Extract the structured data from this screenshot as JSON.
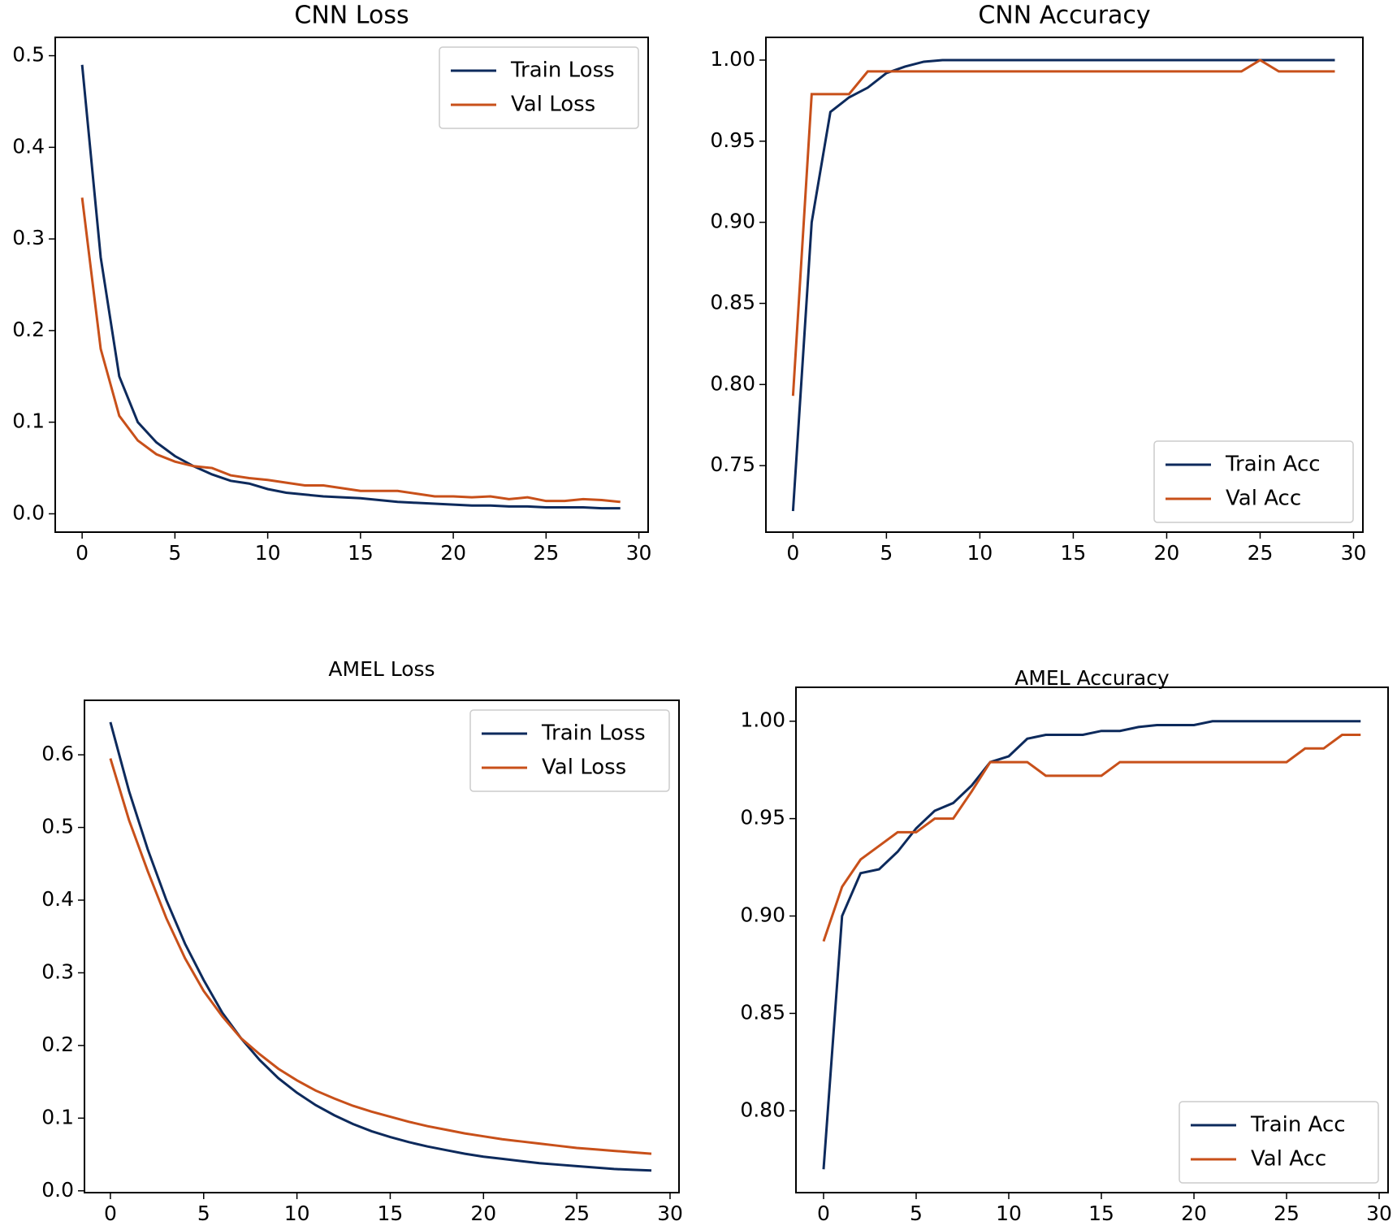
{
  "chart_data": [
    {
      "type": "line",
      "title": "CNN Loss",
      "legend": "upper right",
      "x": [
        0,
        1,
        2,
        3,
        4,
        5,
        6,
        7,
        8,
        9,
        10,
        11,
        12,
        13,
        14,
        15,
        16,
        17,
        18,
        19,
        20,
        21,
        22,
        23,
        24,
        25,
        26,
        27,
        28,
        29
      ],
      "xlim": [
        -1.45,
        30.5
      ],
      "xticks": [
        0,
        5,
        10,
        15,
        20,
        25,
        30
      ],
      "ylim": [
        -0.02,
        0.52
      ],
      "yticks": [
        {
          "value": 0,
          "label": "0.0"
        },
        0.1,
        0.2,
        0.3,
        0.4,
        0.5
      ],
      "series": [
        {
          "name": "Train Loss",
          "color": "#0d2a5c",
          "values": [
            0.49,
            0.28,
            0.15,
            0.1,
            0.078,
            0.063,
            0.052,
            0.043,
            0.036,
            0.033,
            0.027,
            0.023,
            0.021,
            0.019,
            0.018,
            0.017,
            0.015,
            0.013,
            0.012,
            0.011,
            0.01,
            0.009,
            0.009,
            0.008,
            0.008,
            0.007,
            0.007,
            0.007,
            0.006,
            0.006
          ]
        },
        {
          "name": "Val Loss",
          "color": "#c8501a",
          "values": [
            0.345,
            0.18,
            0.107,
            0.08,
            0.065,
            0.057,
            0.052,
            0.05,
            0.042,
            0.039,
            0.037,
            0.034,
            0.031,
            0.031,
            0.028,
            0.025,
            0.025,
            0.025,
            0.022,
            0.019,
            0.019,
            0.018,
            0.019,
            0.016,
            0.018,
            0.014,
            0.014,
            0.016,
            0.015,
            0.013
          ]
        }
      ]
    },
    {
      "type": "line",
      "title": "CNN Accuracy",
      "legend": "lower right",
      "x": [
        0,
        1,
        2,
        3,
        4,
        5,
        6,
        7,
        8,
        9,
        10,
        11,
        12,
        13,
        14,
        15,
        16,
        17,
        18,
        19,
        20,
        21,
        22,
        23,
        24,
        25,
        26,
        27,
        28,
        29
      ],
      "xlim": [
        -1.45,
        30.5
      ],
      "xticks": [
        0,
        5,
        10,
        15,
        20,
        25,
        30
      ],
      "ylim": [
        0.709,
        1.014
      ],
      "yticks": [
        0.75,
        {
          "value": 0.8,
          "label": "0.80"
        },
        0.85,
        {
          "value": 0.9,
          "label": "0.90"
        },
        0.95,
        {
          "value": 1,
          "label": "1.00"
        }
      ],
      "series": [
        {
          "name": "Train Acc",
          "color": "#0d2a5c",
          "values": [
            0.722,
            0.9,
            0.968,
            0.977,
            0.983,
            0.992,
            0.996,
            0.999,
            1,
            1,
            1,
            1,
            1,
            1,
            1,
            1,
            1,
            1,
            1,
            1,
            1,
            1,
            1,
            1,
            1,
            1,
            1,
            1,
            1,
            1
          ]
        },
        {
          "name": "Val Acc",
          "color": "#c8501a",
          "values": [
            0.793,
            0.979,
            0.979,
            0.979,
            0.993,
            0.993,
            0.993,
            0.993,
            0.993,
            0.993,
            0.993,
            0.993,
            0.993,
            0.993,
            0.993,
            0.993,
            0.993,
            0.993,
            0.993,
            0.993,
            0.993,
            0.993,
            0.993,
            0.993,
            0.993,
            1,
            0.993,
            0.993,
            0.993,
            0.993
          ]
        }
      ]
    },
    {
      "type": "line",
      "title": "AMEL Loss",
      "legend": "upper right",
      "x": [
        0,
        1,
        2,
        3,
        4,
        5,
        6,
        7,
        8,
        9,
        10,
        11,
        12,
        13,
        14,
        15,
        16,
        17,
        18,
        19,
        20,
        21,
        22,
        23,
        24,
        25,
        26,
        27,
        28,
        29
      ],
      "xlim": [
        -1.39,
        30.48
      ],
      "xticks": [
        0,
        5,
        10,
        15,
        20,
        25,
        30
      ],
      "ylim": [
        -0.0025,
        0.675
      ],
      "yticks": [
        {
          "value": 0,
          "label": "0.0"
        },
        0.1,
        0.2,
        0.3,
        0.4,
        0.5,
        0.6
      ],
      "series": [
        {
          "name": "Train Loss",
          "color": "#0d2a5c",
          "values": [
            0.645,
            0.55,
            0.47,
            0.4,
            0.34,
            0.29,
            0.245,
            0.21,
            0.18,
            0.155,
            0.135,
            0.118,
            0.104,
            0.092,
            0.082,
            0.074,
            0.067,
            0.061,
            0.056,
            0.051,
            0.047,
            0.044,
            0.041,
            0.038,
            0.036,
            0.034,
            0.032,
            0.03,
            0.029,
            0.028
          ]
        },
        {
          "name": "Val Loss",
          "color": "#c8501a",
          "values": [
            0.595,
            0.51,
            0.44,
            0.375,
            0.32,
            0.275,
            0.24,
            0.21,
            0.188,
            0.168,
            0.152,
            0.138,
            0.127,
            0.117,
            0.109,
            0.102,
            0.095,
            0.089,
            0.084,
            0.079,
            0.075,
            0.071,
            0.068,
            0.065,
            0.062,
            0.059,
            0.057,
            0.055,
            0.053,
            0.051
          ]
        }
      ]
    },
    {
      "type": "line",
      "title": "AMEL Accuracy",
      "legend": "lower right",
      "x": [
        0,
        1,
        2,
        3,
        4,
        5,
        6,
        7,
        8,
        9,
        10,
        11,
        12,
        13,
        14,
        15,
        16,
        17,
        18,
        19,
        20,
        21,
        22,
        23,
        24,
        25,
        26,
        27,
        28,
        29
      ],
      "xlim": [
        -1.49,
        30.48
      ],
      "xticks": [
        0,
        5,
        10,
        15,
        20,
        25,
        30
      ],
      "ylim": [
        0.758,
        1.0174
      ],
      "yticks": [
        {
          "value": 0.8,
          "label": "0.80"
        },
        0.85,
        {
          "value": 0.9,
          "label": "0.90"
        },
        0.95,
        {
          "value": 1,
          "label": "1.00"
        }
      ],
      "series": [
        {
          "name": "Train Acc",
          "color": "#0d2a5c",
          "values": [
            0.77,
            0.9,
            0.922,
            0.924,
            0.933,
            0.945,
            0.954,
            0.958,
            0.967,
            0.979,
            0.982,
            0.991,
            0.993,
            0.993,
            0.993,
            0.995,
            0.995,
            0.997,
            0.998,
            0.998,
            0.998,
            1,
            1,
            1,
            1,
            1,
            1,
            1,
            1,
            1
          ]
        },
        {
          "name": "Val Acc",
          "color": "#c8501a",
          "values": [
            0.887,
            0.915,
            0.929,
            0.936,
            0.943,
            0.943,
            0.95,
            0.95,
            0.964,
            0.979,
            0.979,
            0.979,
            0.972,
            0.972,
            0.972,
            0.972,
            0.979,
            0.979,
            0.979,
            0.979,
            0.979,
            0.979,
            0.979,
            0.979,
            0.979,
            0.979,
            0.986,
            0.986,
            0.993,
            0.993
          ]
        }
      ]
    }
  ]
}
